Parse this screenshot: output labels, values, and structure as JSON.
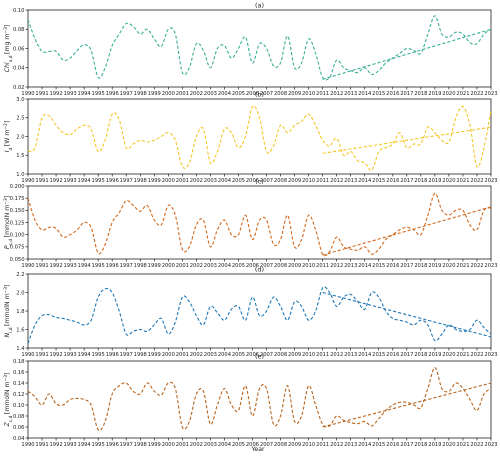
{
  "chart_data": [
    {
      "type": "line",
      "title": "(a)",
      "ylabel_main": "Chl",
      "ylabel_sub": "a,d",
      "ylabel_unit": "[mg m",
      "ylabel_exp": "−3",
      "ylabel_close": "]",
      "color": "#3aaf98",
      "ylim": [
        0.02,
        0.1
      ],
      "yticks": [
        0.02,
        0.04,
        0.06,
        0.08,
        0.1
      ],
      "yticklabels": [
        "0.02",
        "0.04",
        "0.06",
        "0.08",
        "0.10"
      ],
      "x": [
        1990.0,
        1990.5,
        1991.0,
        1991.5,
        1992.0,
        1992.5,
        1993.0,
        1993.5,
        1994.0,
        1994.5,
        1995.0,
        1995.5,
        1996.0,
        1996.5,
        1997.0,
        1997.5,
        1998.0,
        1998.5,
        1999.0,
        1999.5,
        2000.0,
        2000.5,
        2001.0,
        2001.5,
        2002.0,
        2002.5,
        2003.0,
        2003.5,
        2004.0,
        2004.5,
        2005.0,
        2005.5,
        2006.0,
        2006.5,
        2007.0,
        2007.5,
        2008.0,
        2008.5,
        2009.0,
        2009.5,
        2010.0,
        2010.5,
        2011.0,
        2011.5,
        2012.0,
        2012.5,
        2013.0,
        2013.5,
        2014.0,
        2014.5,
        2015.0,
        2015.5,
        2016.0,
        2016.5,
        2017.0,
        2017.5,
        2018.0,
        2018.5,
        2019.0,
        2019.5,
        2020.0,
        2020.5,
        2021.0,
        2021.5,
        2022.0,
        2022.5,
        2023.0
      ],
      "values": [
        0.09,
        0.07,
        0.057,
        0.057,
        0.057,
        0.048,
        0.05,
        0.058,
        0.064,
        0.058,
        0.03,
        0.04,
        0.063,
        0.075,
        0.086,
        0.083,
        0.075,
        0.08,
        0.07,
        0.062,
        0.08,
        0.075,
        0.035,
        0.04,
        0.065,
        0.058,
        0.04,
        0.06,
        0.063,
        0.05,
        0.06,
        0.072,
        0.045,
        0.065,
        0.06,
        0.042,
        0.045,
        0.073,
        0.04,
        0.045,
        0.07,
        0.055,
        0.03,
        0.03,
        0.048,
        0.04,
        0.037,
        0.035,
        0.04,
        0.033,
        0.037,
        0.045,
        0.05,
        0.055,
        0.06,
        0.058,
        0.055,
        0.075,
        0.094,
        0.075,
        0.072,
        0.077,
        0.075,
        0.066,
        0.065,
        0.075,
        0.08
      ],
      "trend": {
        "x": [
          2011,
          2023
        ],
        "y": [
          0.028,
          0.08
        ]
      }
    },
    {
      "type": "line",
      "title": "(b)",
      "ylabel_main": "I",
      "ylabel_sub": "d",
      "ylabel_unit": "[W m",
      "ylabel_exp": "−2",
      "ylabel_close": "]",
      "color": "#f5c626",
      "ylim": [
        1.0,
        3.0
      ],
      "yticks": [
        1.0,
        1.5,
        2.0,
        2.5,
        3.0
      ],
      "yticklabels": [
        "1.0",
        "1.5",
        "2.0",
        "2.5",
        "3.0"
      ],
      "x": [
        1990.0,
        1990.5,
        1991.0,
        1991.5,
        1992.0,
        1992.5,
        1993.0,
        1993.5,
        1994.0,
        1994.5,
        1995.0,
        1995.5,
        1996.0,
        1996.5,
        1997.0,
        1997.5,
        1998.0,
        1998.5,
        1999.0,
        1999.5,
        2000.0,
        2000.5,
        2001.0,
        2001.5,
        2002.0,
        2002.5,
        2003.0,
        2003.5,
        2004.0,
        2004.5,
        2005.0,
        2005.5,
        2006.0,
        2006.5,
        2007.0,
        2007.5,
        2008.0,
        2008.5,
        2009.0,
        2009.5,
        2010.0,
        2010.5,
        2011.0,
        2011.5,
        2012.0,
        2012.5,
        2013.0,
        2013.5,
        2014.0,
        2014.5,
        2015.0,
        2015.5,
        2016.0,
        2016.5,
        2017.0,
        2017.5,
        2018.0,
        2018.5,
        2019.0,
        2019.5,
        2020.0,
        2020.5,
        2021.0,
        2021.5,
        2022.0,
        2022.5,
        2023.0
      ],
      "values": [
        1.6,
        1.7,
        2.5,
        2.55,
        2.3,
        2.1,
        2.05,
        2.2,
        2.3,
        2.2,
        1.6,
        1.9,
        2.6,
        2.45,
        1.7,
        1.8,
        1.9,
        1.85,
        1.9,
        2.0,
        2.1,
        1.9,
        1.2,
        1.3,
        2.0,
        2.2,
        1.3,
        1.6,
        2.2,
        2.1,
        1.7,
        2.0,
        2.8,
        2.5,
        1.6,
        1.75,
        2.3,
        2.1,
        2.3,
        2.4,
        2.6,
        2.3,
        1.9,
        1.75,
        1.95,
        1.5,
        1.6,
        1.35,
        1.3,
        1.1,
        1.6,
        1.7,
        1.8,
        2.1,
        1.7,
        1.8,
        1.8,
        2.25,
        2.1,
        1.9,
        1.85,
        2.5,
        2.8,
        2.3,
        1.2,
        1.7,
        2.7
      ],
      "trend": {
        "x": [
          2011,
          2023
        ],
        "y": [
          1.55,
          2.25
        ]
      }
    },
    {
      "type": "line",
      "title": "(c)",
      "ylabel_main": "P",
      "ylabel_sub": "c,d",
      "ylabel_unit": "[mmolN m",
      "ylabel_exp": "−3",
      "ylabel_close": "]",
      "color": "#d2691e",
      "ylim": [
        0.05,
        0.2
      ],
      "yticks": [
        0.05,
        0.075,
        0.1,
        0.125,
        0.15,
        0.175,
        0.2
      ],
      "yticklabels": [
        "0.050",
        "0.075",
        "0.100",
        "0.125",
        "0.150",
        "0.175",
        "0.200"
      ],
      "x": [
        1990.0,
        1990.5,
        1991.0,
        1991.5,
        1992.0,
        1992.5,
        1993.0,
        1993.5,
        1994.0,
        1994.5,
        1995.0,
        1995.5,
        1996.0,
        1996.5,
        1997.0,
        1997.5,
        1998.0,
        1998.5,
        1999.0,
        1999.5,
        2000.0,
        2000.5,
        2001.0,
        2001.5,
        2002.0,
        2002.5,
        2003.0,
        2003.5,
        2004.0,
        2004.5,
        2005.0,
        2005.5,
        2006.0,
        2006.5,
        2007.0,
        2007.5,
        2008.0,
        2008.5,
        2009.0,
        2009.5,
        2010.0,
        2010.5,
        2011.0,
        2011.5,
        2012.0,
        2012.5,
        2013.0,
        2013.5,
        2014.0,
        2014.5,
        2015.0,
        2015.5,
        2016.0,
        2016.5,
        2017.0,
        2017.5,
        2018.0,
        2018.5,
        2019.0,
        2019.5,
        2020.0,
        2020.5,
        2021.0,
        2021.5,
        2022.0,
        2022.5,
        2023.0
      ],
      "values": [
        0.175,
        0.13,
        0.11,
        0.115,
        0.113,
        0.095,
        0.1,
        0.11,
        0.125,
        0.115,
        0.062,
        0.08,
        0.125,
        0.145,
        0.17,
        0.16,
        0.148,
        0.16,
        0.13,
        0.12,
        0.16,
        0.14,
        0.07,
        0.075,
        0.12,
        0.13,
        0.075,
        0.11,
        0.13,
        0.1,
        0.1,
        0.14,
        0.09,
        0.13,
        0.13,
        0.08,
        0.09,
        0.14,
        0.075,
        0.09,
        0.14,
        0.11,
        0.06,
        0.065,
        0.095,
        0.075,
        0.07,
        0.068,
        0.075,
        0.06,
        0.07,
        0.09,
        0.1,
        0.11,
        0.115,
        0.11,
        0.1,
        0.14,
        0.185,
        0.15,
        0.14,
        0.15,
        0.15,
        0.12,
        0.11,
        0.15,
        0.155
      ],
      "trend": {
        "x": [
          2011,
          2023
        ],
        "y": [
          0.058,
          0.157
        ]
      }
    },
    {
      "type": "line",
      "title": "(d)",
      "ylabel_main": "N",
      "ylabel_sub": "i,d",
      "ylabel_unit": "[mmolN m",
      "ylabel_exp": "−3",
      "ylabel_close": "]",
      "color": "#1f77b4",
      "ylim": [
        1.4,
        2.2
      ],
      "yticks": [
        1.4,
        1.6,
        1.8,
        2.0,
        2.2
      ],
      "yticklabels": [
        "1.4",
        "1.6",
        "1.8",
        "2.0",
        "2.2"
      ],
      "x": [
        1990.0,
        1990.5,
        1991.0,
        1991.5,
        1992.0,
        1992.5,
        1993.0,
        1993.5,
        1994.0,
        1994.5,
        1995.0,
        1995.5,
        1996.0,
        1996.5,
        1997.0,
        1997.5,
        1998.0,
        1998.5,
        1999.0,
        1999.5,
        2000.0,
        2000.5,
        2001.0,
        2001.5,
        2002.0,
        2002.5,
        2003.0,
        2003.5,
        2004.0,
        2004.5,
        2005.0,
        2005.5,
        2006.0,
        2006.5,
        2007.0,
        2007.5,
        2008.0,
        2008.5,
        2009.0,
        2009.5,
        2010.0,
        2010.5,
        2011.0,
        2011.5,
        2012.0,
        2012.5,
        2013.0,
        2013.5,
        2014.0,
        2014.5,
        2015.0,
        2015.5,
        2016.0,
        2016.5,
        2017.0,
        2017.5,
        2018.0,
        2018.5,
        2019.0,
        2019.5,
        2020.0,
        2020.5,
        2021.0,
        2021.5,
        2022.0,
        2022.5,
        2023.0
      ],
      "values": [
        1.45,
        1.65,
        1.75,
        1.76,
        1.73,
        1.72,
        1.7,
        1.68,
        1.65,
        1.7,
        1.95,
        2.04,
        2.0,
        1.8,
        1.55,
        1.58,
        1.6,
        1.58,
        1.65,
        1.72,
        1.55,
        1.68,
        1.95,
        1.9,
        1.75,
        1.65,
        1.85,
        1.78,
        1.7,
        1.82,
        1.85,
        1.7,
        1.95,
        1.75,
        1.8,
        1.95,
        1.85,
        1.7,
        1.9,
        1.85,
        1.7,
        1.8,
        2.05,
        2.0,
        1.85,
        1.95,
        1.98,
        1.9,
        1.82,
        2.0,
        1.95,
        1.8,
        1.72,
        1.7,
        1.68,
        1.65,
        1.7,
        1.65,
        1.48,
        1.55,
        1.65,
        1.6,
        1.58,
        1.6,
        1.7,
        1.62,
        1.55
      ],
      "trend": {
        "x": [
          2011,
          2023
        ],
        "y": [
          2.0,
          1.52
        ]
      }
    },
    {
      "type": "line",
      "title": "(e)",
      "ylabel_main": "Z",
      "ylabel_sub": "c,d",
      "ylabel_unit": "[mmolN m",
      "ylabel_exp": "−3",
      "ylabel_close": "]",
      "color": "#b8651d",
      "ylim": [
        0.04,
        0.18
      ],
      "yticks": [
        0.04,
        0.06,
        0.08,
        0.1,
        0.12,
        0.14,
        0.16,
        0.18
      ],
      "yticklabels": [
        "0.04",
        "0.06",
        "0.08",
        "0.10",
        "0.12",
        "0.14",
        "0.16",
        "0.18"
      ],
      "x": [
        1990.0,
        1990.5,
        1991.0,
        1991.5,
        1992.0,
        1992.5,
        1993.0,
        1993.5,
        1994.0,
        1994.5,
        1995.0,
        1995.5,
        1996.0,
        1996.5,
        1997.0,
        1997.5,
        1998.0,
        1998.5,
        1999.0,
        1999.5,
        2000.0,
        2000.5,
        2001.0,
        2001.5,
        2002.0,
        2002.5,
        2003.0,
        2003.5,
        2004.0,
        2004.5,
        2005.0,
        2005.5,
        2006.0,
        2006.5,
        2007.0,
        2007.5,
        2008.0,
        2008.5,
        2009.0,
        2009.5,
        2010.0,
        2010.5,
        2011.0,
        2011.5,
        2012.0,
        2012.5,
        2013.0,
        2013.5,
        2014.0,
        2014.5,
        2015.0,
        2015.5,
        2016.0,
        2016.5,
        2017.0,
        2017.5,
        2018.0,
        2018.5,
        2019.0,
        2019.5,
        2020.0,
        2020.5,
        2021.0,
        2021.5,
        2022.0,
        2022.5,
        2023.0
      ],
      "values": [
        0.125,
        0.115,
        0.1,
        0.12,
        0.102,
        0.1,
        0.11,
        0.112,
        0.11,
        0.1,
        0.055,
        0.07,
        0.12,
        0.135,
        0.14,
        0.125,
        0.12,
        0.14,
        0.125,
        0.118,
        0.14,
        0.13,
        0.06,
        0.07,
        0.12,
        0.125,
        0.065,
        0.1,
        0.13,
        0.1,
        0.09,
        0.135,
        0.08,
        0.13,
        0.13,
        0.065,
        0.08,
        0.135,
        0.07,
        0.08,
        0.135,
        0.1,
        0.065,
        0.062,
        0.08,
        0.072,
        0.068,
        0.066,
        0.07,
        0.062,
        0.075,
        0.09,
        0.1,
        0.105,
        0.105,
        0.1,
        0.095,
        0.13,
        0.168,
        0.13,
        0.125,
        0.14,
        0.13,
        0.11,
        0.09,
        0.12,
        0.13
      ],
      "trend": {
        "x": [
          2011,
          2023
        ],
        "y": [
          0.06,
          0.14
        ]
      }
    }
  ],
  "x_axis": {
    "xlabel": "Year",
    "xlim": [
      1990,
      2023
    ],
    "ticks": [
      "1990",
      "1991",
      "1992",
      "1993",
      "1994",
      "1995",
      "1996",
      "1997",
      "1998",
      "1999",
      "2000",
      "2001",
      "2002",
      "2003",
      "2004",
      "2005",
      "2006",
      "2007",
      "2008",
      "2009",
      "2010",
      "2011",
      "2012",
      "2013",
      "2014",
      "2015",
      "2016",
      "2017",
      "2018",
      "2019",
      "2020",
      "2021",
      "2022",
      "2023"
    ]
  }
}
